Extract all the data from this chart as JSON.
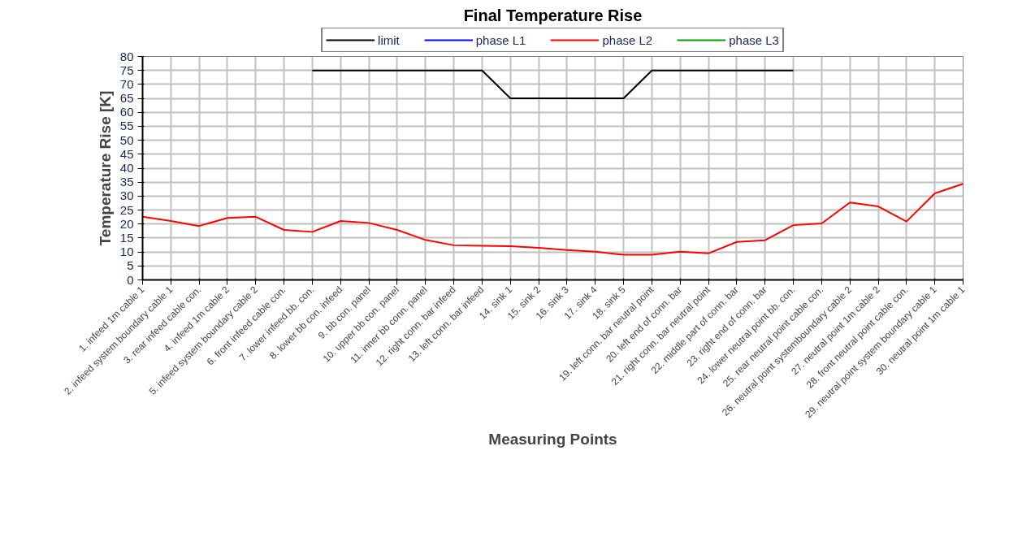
{
  "chart_data": {
    "type": "line",
    "title": "Final Temperature Rise",
    "xlabel": "Measuring Points",
    "ylabel": "Temperature Rise [K]",
    "categories": [
      "1. infeed 1m cable 1",
      "2. infeed system boundary cable 1",
      "3. rear infeed cable con.",
      "4. infeed 1m cable 2",
      "5. infeed system boundary cable 2",
      "6. front infeed cable con.",
      "7. lower infeed bb. con.",
      "8. lower bb con. infeed",
      "9. bb con. panel",
      "10. upper bb con. panel",
      "11. inner bb conn. panel",
      "12. right conn. bar infeed",
      "13. left conn. bar infeed",
      "14. sink 1",
      "15. sink 2",
      "16. sink 3",
      "17. sink 4",
      "18. sink 5",
      "19. left conn. bar neutral point",
      "20. left end of conn. bar",
      "21. right conn. bar neutral point",
      "22. middle part of conn. bar",
      "23. right end of conn. bar",
      "24. lower neutral point bb. con.",
      "25. rear neutral point cable con.",
      "26. neutral point systemboundary cable 2",
      "27. neutral point 1m cable 2",
      "28. front neutral point cable con.",
      "29. neutral point system boundary cable 1",
      "30. neutral point 1m cable 1"
    ],
    "series": [
      {
        "name": "limit",
        "color": "#000000",
        "values": [
          null,
          null,
          null,
          null,
          null,
          null,
          75,
          75,
          75,
          75,
          75,
          75,
          75,
          65,
          65,
          65,
          65,
          65,
          75,
          75,
          75,
          75,
          75,
          75,
          null,
          null,
          null,
          null,
          null,
          null
        ]
      },
      {
        "name": "phase L1",
        "color": "#0000ff",
        "values": [
          null,
          null,
          null,
          null,
          null,
          null,
          null,
          null,
          null,
          null,
          null,
          null,
          null,
          null,
          null,
          null,
          null,
          null,
          null,
          null,
          null,
          null,
          null,
          null,
          null,
          null,
          null,
          null,
          null,
          null
        ]
      },
      {
        "name": "phase L2",
        "color": "#ff0000",
        "values": [
          22.6,
          21.1,
          19.3,
          22.2,
          22.6,
          17.9,
          17.2,
          21.1,
          20.4,
          17.9,
          14.3,
          12.4,
          12.2,
          12.1,
          11.5,
          10.7,
          10.1,
          9.0,
          9.0,
          10.1,
          9.5,
          13.6,
          14.2,
          19.6,
          20.2,
          27.7,
          26.3,
          20.9,
          31.0,
          34.4
        ]
      },
      {
        "name": "phase L3",
        "color": "#00a000",
        "values": [
          null,
          null,
          null,
          null,
          null,
          null,
          null,
          null,
          null,
          null,
          null,
          null,
          null,
          null,
          null,
          null,
          null,
          null,
          null,
          null,
          null,
          null,
          null,
          null,
          null,
          null,
          null,
          null,
          null,
          null
        ]
      }
    ],
    "ylim": [
      0,
      80
    ],
    "yticks": [
      0,
      5,
      10,
      15,
      20,
      25,
      30,
      35,
      40,
      45,
      50,
      55,
      60,
      65,
      70,
      75,
      80
    ],
    "grid": true,
    "legend": "top"
  }
}
